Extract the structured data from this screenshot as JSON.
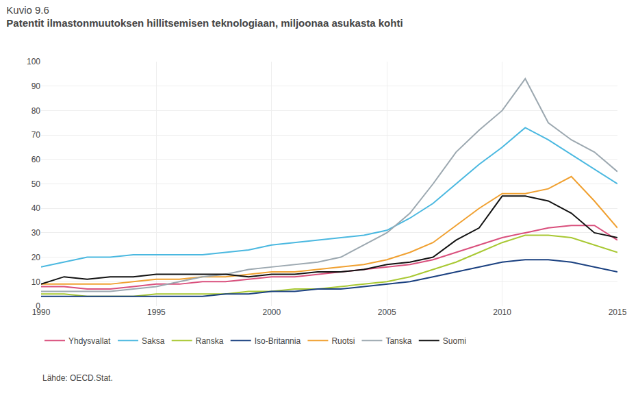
{
  "chart_data": {
    "type": "line",
    "subtitle": "Kuvio 9.6",
    "title": "Patentit ilmastonmuutoksen hillitsemisen teknologiaan, miljoonaa asukasta kohti",
    "annotations": [
      "Lähde: OECD.Stat."
    ],
    "x": [
      1990,
      1991,
      1992,
      1993,
      1994,
      1995,
      1996,
      1997,
      1998,
      1999,
      2000,
      2001,
      2002,
      2003,
      2004,
      2005,
      2006,
      2007,
      2008,
      2009,
      2010,
      2011,
      2012,
      2013,
      2014,
      2015
    ],
    "series": [
      {
        "name": "Yhdysvallat",
        "color": "#d94f7c",
        "values": [
          8,
          8,
          7,
          7,
          8,
          9,
          9,
          10,
          10,
          11,
          12,
          12,
          13,
          14,
          15,
          16,
          17,
          19,
          22,
          25,
          28,
          30,
          32,
          33,
          33,
          27
        ]
      },
      {
        "name": "Saksa",
        "color": "#4ab8e0",
        "values": [
          16,
          18,
          20,
          20,
          21,
          21,
          21,
          21,
          22,
          23,
          25,
          26,
          27,
          28,
          29,
          31,
          36,
          42,
          50,
          58,
          65,
          73,
          68,
          62,
          56,
          50
        ]
      },
      {
        "name": "Ranska",
        "color": "#a8c832",
        "values": [
          5,
          5,
          4,
          4,
          4,
          5,
          5,
          5,
          5,
          6,
          6,
          7,
          7,
          8,
          9,
          10,
          12,
          15,
          18,
          22,
          26,
          29,
          29,
          28,
          25,
          22
        ]
      },
      {
        "name": "Iso-Britannia",
        "color": "#1a4080",
        "values": [
          4,
          4,
          4,
          4,
          4,
          4,
          4,
          4,
          5,
          5,
          6,
          6,
          7,
          7,
          8,
          9,
          10,
          12,
          14,
          16,
          18,
          19,
          19,
          18,
          16,
          14
        ]
      },
      {
        "name": "Ruotsi",
        "color": "#f0a030",
        "values": [
          9,
          9,
          9,
          9,
          10,
          11,
          11,
          12,
          12,
          13,
          14,
          14,
          15,
          16,
          17,
          19,
          22,
          26,
          33,
          40,
          46,
          46,
          48,
          53,
          43,
          32
        ]
      },
      {
        "name": "Tanska",
        "color": "#9ca8b0",
        "values": [
          6,
          6,
          6,
          6,
          7,
          8,
          10,
          12,
          13,
          15,
          16,
          17,
          18,
          20,
          25,
          30,
          38,
          50,
          63,
          72,
          80,
          93,
          75,
          68,
          63,
          55
        ]
      },
      {
        "name": "Suomi",
        "color": "#111111",
        "values": [
          9,
          12,
          11,
          12,
          12,
          13,
          13,
          13,
          13,
          12,
          13,
          13,
          14,
          14,
          15,
          17,
          18,
          20,
          27,
          32,
          45,
          45,
          43,
          38,
          30,
          28
        ]
      }
    ],
    "xlim": [
      1990,
      2015
    ],
    "xticks": [
      1990,
      1995,
      2000,
      2005,
      2010,
      2015
    ],
    "ylim": [
      0,
      100
    ],
    "yticks": [
      0,
      10,
      20,
      30,
      40,
      50,
      60,
      70,
      80,
      90,
      100
    ],
    "grid": true,
    "legend": "bottom"
  }
}
